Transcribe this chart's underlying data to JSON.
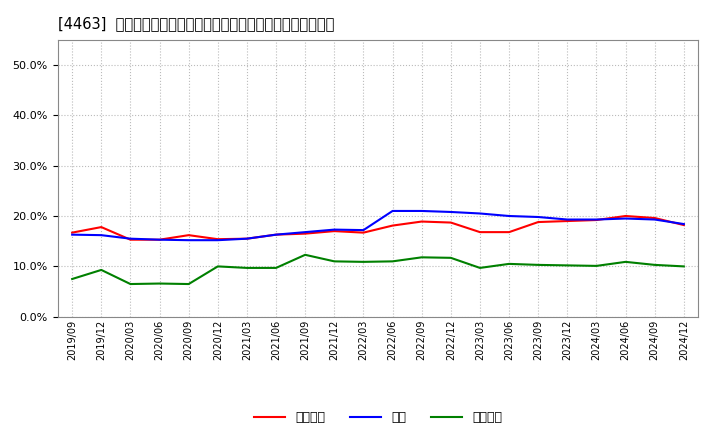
{
  "title": "[4463]  売上債権、在庫、買入債務の総資産に対する比率の推移",
  "title_fontsize": 10.5,
  "background_color": "#ffffff",
  "plot_bg_color": "#ffffff",
  "grid_color": "#bbbbbb",
  "dates": [
    "2019/09",
    "2019/12",
    "2020/03",
    "2020/06",
    "2020/09",
    "2020/12",
    "2021/03",
    "2021/06",
    "2021/09",
    "2021/12",
    "2022/03",
    "2022/06",
    "2022/09",
    "2022/12",
    "2023/03",
    "2023/06",
    "2023/09",
    "2023/12",
    "2024/03",
    "2024/06",
    "2024/09",
    "2024/12"
  ],
  "urikake": [
    0.167,
    0.178,
    0.153,
    0.153,
    0.162,
    0.154,
    0.155,
    0.163,
    0.165,
    0.17,
    0.167,
    0.181,
    0.189,
    0.187,
    0.168,
    0.168,
    0.188,
    0.19,
    0.192,
    0.2,
    0.196,
    0.182
  ],
  "zaiko": [
    0.163,
    0.162,
    0.155,
    0.153,
    0.152,
    0.152,
    0.155,
    0.163,
    0.168,
    0.173,
    0.172,
    0.21,
    0.21,
    0.208,
    0.205,
    0.2,
    0.198,
    0.193,
    0.193,
    0.195,
    0.193,
    0.184
  ],
  "kainyu": [
    0.075,
    0.093,
    0.065,
    0.066,
    0.065,
    0.1,
    0.097,
    0.097,
    0.123,
    0.11,
    0.109,
    0.11,
    0.118,
    0.117,
    0.097,
    0.105,
    0.103,
    0.102,
    0.101,
    0.109,
    0.103,
    0.1
  ],
  "urikake_color": "#ff0000",
  "zaiko_color": "#0000ff",
  "kainyu_color": "#008000",
  "ylim": [
    0.0,
    0.55
  ],
  "yticks": [
    0.0,
    0.1,
    0.2,
    0.3,
    0.4,
    0.5
  ],
  "legend_labels": [
    "売上債権",
    "在庫",
    "買入債務"
  ]
}
